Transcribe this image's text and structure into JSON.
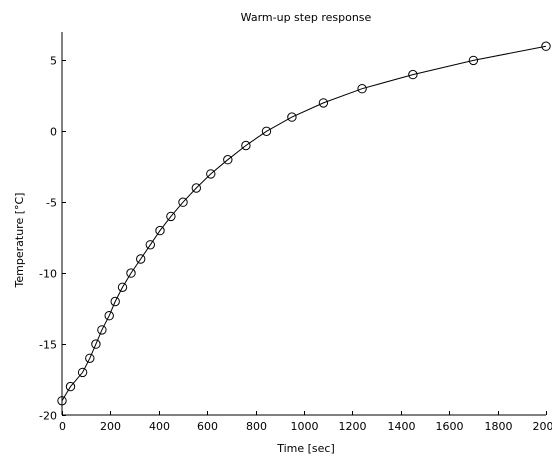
{
  "chart_data": {
    "type": "line",
    "title": "Warm-up step response",
    "xlabel": "Time [sec]",
    "ylabel": "Temperature [°C]",
    "xlim": [
      0,
      2000
    ],
    "ylim": [
      -20,
      7
    ],
    "xticks": [
      0,
      200,
      400,
      600,
      800,
      1000,
      1200,
      1400,
      1600,
      1800,
      2000
    ],
    "yticks": [
      -20,
      -15,
      -10,
      -5,
      0,
      5
    ],
    "grid": false,
    "series": [
      {
        "marker": "circle-open",
        "color": "#000000",
        "x": [
          0,
          35,
          85,
          115,
          140,
          165,
          195,
          220,
          250,
          285,
          325,
          365,
          405,
          450,
          500,
          555,
          615,
          685,
          760,
          845,
          950,
          1080,
          1240,
          1450,
          1700,
          2000
        ],
        "y": [
          -19,
          -18,
          -17,
          -16,
          -15,
          -14,
          -13,
          -12,
          -11,
          -10,
          -9,
          -8,
          -7,
          -6,
          -5,
          -4,
          -3,
          -2,
          -1,
          0,
          1,
          2,
          3,
          4,
          5,
          6
        ]
      }
    ]
  }
}
